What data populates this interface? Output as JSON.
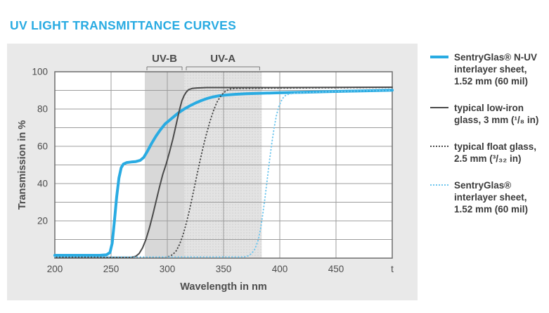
{
  "header": {
    "title": "UV LIGHT TRANSMITTANCE CURVES",
    "title_color": "#29abe2"
  },
  "colors": {
    "panel_bg": "#e9e9e9",
    "plot_bg": "#ffffff",
    "grid": "#9c9c9c",
    "axis_border": "#6e6e6e",
    "text": "#4d4d4d",
    "cyan": "#29abe2",
    "cyan_light": "#6ec6ee",
    "dark": "#4a4a4a",
    "band_uvb": "#d8d8d8",
    "band_uva": "#e3e3e3",
    "band_uva_dot": "#cccccc"
  },
  "chart_data": {
    "type": "line",
    "title": "UV LIGHT TRANSMITTANCE CURVES",
    "xlabel": "Wavelength in nm",
    "ylabel": "Transmission in %",
    "xlim": [
      200,
      500
    ],
    "ylim": [
      0,
      100
    ],
    "x_ticks": [
      200,
      250,
      300,
      350,
      400,
      450
    ],
    "x_end_label": "t",
    "y_ticks": [
      20,
      40,
      60,
      80,
      100
    ],
    "y_grid_step": 10,
    "grid": true,
    "legend_position": "right",
    "bands": [
      {
        "label": "UV-B",
        "from_nm": 280,
        "to_nm": 315,
        "fill": "uvb"
      },
      {
        "label": "UV-A",
        "from_nm": 315,
        "to_nm": 384,
        "fill": "uva"
      }
    ],
    "series": [
      {
        "name": "SentryGlas® N-UV interlayer sheet, 1.52 mm (60 mil)",
        "color": "#29abe2",
        "style": "solid",
        "width": 4,
        "points": [
          [
            200,
            1.5
          ],
          [
            240,
            1.5
          ],
          [
            246,
            1.8
          ],
          [
            249,
            3
          ],
          [
            251,
            8
          ],
          [
            253,
            20
          ],
          [
            255,
            33
          ],
          [
            257,
            43
          ],
          [
            259,
            48.5
          ],
          [
            261,
            50.5
          ],
          [
            264,
            51.3
          ],
          [
            268,
            51.6
          ],
          [
            272,
            51.8
          ],
          [
            276,
            52.5
          ],
          [
            279,
            54
          ],
          [
            282,
            57
          ],
          [
            286,
            61.5
          ],
          [
            290,
            65.5
          ],
          [
            294,
            69
          ],
          [
            298,
            72
          ],
          [
            302,
            74
          ],
          [
            306,
            76
          ],
          [
            310,
            78
          ],
          [
            315,
            80
          ],
          [
            320,
            81.7
          ],
          [
            325,
            83.2
          ],
          [
            330,
            84.5
          ],
          [
            335,
            85.6
          ],
          [
            340,
            86.4
          ],
          [
            345,
            87
          ],
          [
            350,
            87.4
          ],
          [
            360,
            87.9
          ],
          [
            370,
            88.2
          ],
          [
            380,
            88.4
          ],
          [
            400,
            88.7
          ],
          [
            420,
            89
          ],
          [
            440,
            89.3
          ],
          [
            460,
            89.6
          ],
          [
            480,
            89.8
          ],
          [
            500,
            90.1
          ]
        ]
      },
      {
        "name": "typical low-iron glass, 3 mm (¹/₈ in)",
        "color": "#4a4a4a",
        "style": "solid",
        "width": 2,
        "points": [
          [
            200,
            0.4
          ],
          [
            268,
            0.4
          ],
          [
            272,
            1
          ],
          [
            275,
            2.5
          ],
          [
            278,
            5.5
          ],
          [
            281,
            10
          ],
          [
            284,
            16
          ],
          [
            287,
            23
          ],
          [
            290,
            30.5
          ],
          [
            293,
            38
          ],
          [
            296,
            45
          ],
          [
            299,
            50.5
          ],
          [
            302,
            57
          ],
          [
            305,
            64
          ],
          [
            308,
            72
          ],
          [
            311,
            80
          ],
          [
            313,
            84.5
          ],
          [
            315,
            87.3
          ],
          [
            317,
            89.2
          ],
          [
            319,
            90.4
          ],
          [
            322,
            91
          ],
          [
            326,
            91.3
          ],
          [
            335,
            91.5
          ],
          [
            360,
            91.5
          ],
          [
            400,
            91.5
          ],
          [
            450,
            91.6
          ],
          [
            500,
            91.7
          ]
        ]
      },
      {
        "name": "typical float glass, 2.5 mm (³/₃₂ in)",
        "color": "#4a4a4a",
        "style": "dotted",
        "width": 2,
        "points": [
          [
            200,
            0.4
          ],
          [
            298,
            0.4
          ],
          [
            302,
            1
          ],
          [
            305,
            2
          ],
          [
            308,
            4
          ],
          [
            311,
            7.5
          ],
          [
            314,
            12.5
          ],
          [
            317,
            19
          ],
          [
            320,
            26.5
          ],
          [
            323,
            35
          ],
          [
            326,
            43.5
          ],
          [
            329,
            52
          ],
          [
            332,
            60
          ],
          [
            335,
            67
          ],
          [
            338,
            73.5
          ],
          [
            341,
            79
          ],
          [
            344,
            83.5
          ],
          [
            347,
            86.5
          ],
          [
            350,
            88.7
          ],
          [
            353,
            90
          ],
          [
            356,
            90.7
          ],
          [
            360,
            91
          ],
          [
            370,
            91.1
          ],
          [
            400,
            91.2
          ],
          [
            450,
            91.4
          ],
          [
            500,
            91.6
          ]
        ]
      },
      {
        "name": "SentryGlas® interlayer sheet, 1.52 mm (60 mil)",
        "color": "#6ec6ee",
        "style": "dotted",
        "width": 2,
        "points": [
          [
            200,
            0.6
          ],
          [
            368,
            0.6
          ],
          [
            372,
            1.2
          ],
          [
            375,
            2.5
          ],
          [
            378,
            5
          ],
          [
            381,
            10
          ],
          [
            383,
            16
          ],
          [
            385,
            24
          ],
          [
            387,
            33
          ],
          [
            389,
            43
          ],
          [
            391,
            53
          ],
          [
            393,
            62
          ],
          [
            395,
            70
          ],
          [
            397,
            76.5
          ],
          [
            399,
            81
          ],
          [
            401,
            84
          ],
          [
            403,
            86
          ],
          [
            405,
            87.2
          ],
          [
            408,
            88
          ],
          [
            412,
            88.4
          ],
          [
            420,
            88.8
          ],
          [
            440,
            89.2
          ],
          [
            460,
            89.5
          ],
          [
            480,
            89.8
          ],
          [
            500,
            90
          ]
        ]
      }
    ]
  },
  "legend": {
    "items": [
      {
        "text": "SentryGlas® N-UV\ninterlayer sheet,\n1.52 mm (60 mil)",
        "swatch": {
          "color": "#29abe2",
          "style": "solid",
          "thickness": 4
        }
      },
      {
        "text": "typical low-iron\nglass, 3 mm (¹/₈ in)",
        "swatch": {
          "color": "#4a4a4a",
          "style": "solid",
          "thickness": 2
        }
      },
      {
        "text": "typical float glass,\n2.5 mm (³/₃₂ in)",
        "swatch": {
          "color": "#4a4a4a",
          "style": "dotted",
          "thickness": 2
        }
      },
      {
        "text": "SentryGlas®\ninterlayer sheet,\n1.52 mm (60 mil)",
        "swatch": {
          "color": "#6ec6ee",
          "style": "dotted",
          "thickness": 2
        }
      }
    ]
  }
}
